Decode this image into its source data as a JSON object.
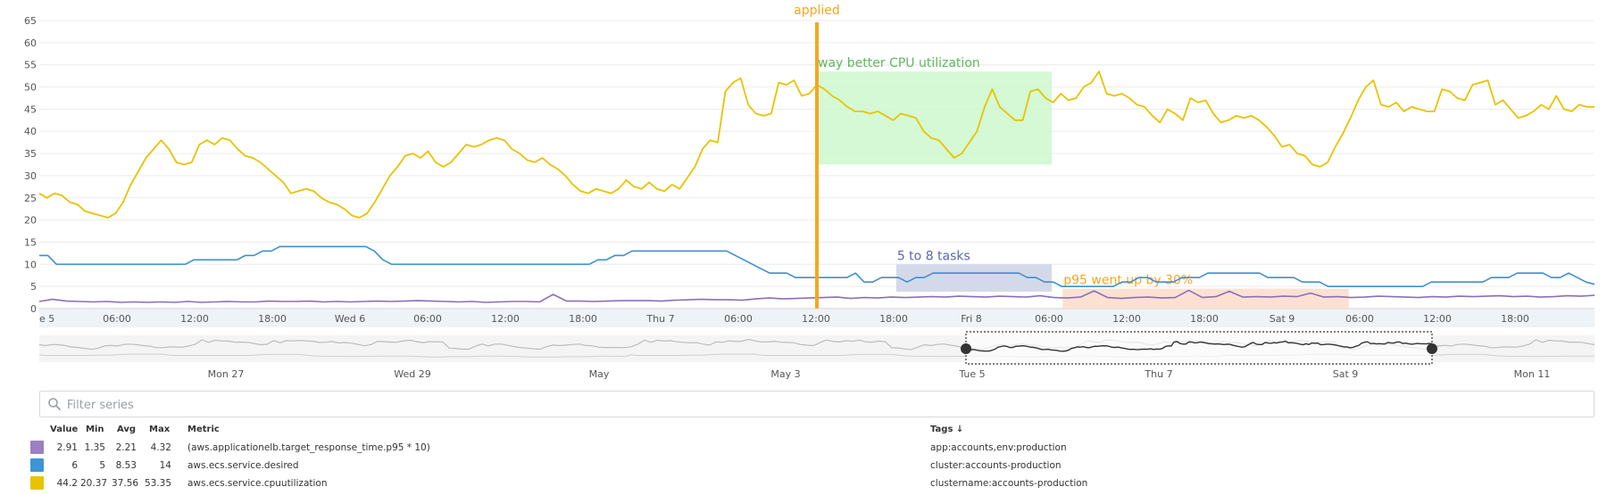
{
  "chart_data": [
    {
      "type": "line",
      "title": "",
      "ylim": [
        0,
        65
      ],
      "yticks": [
        0,
        5,
        10,
        15,
        20,
        25,
        30,
        35,
        40,
        45,
        50,
        55,
        60,
        65
      ],
      "grid": true,
      "legend": "none",
      "xlabels": [
        "e 5",
        "06:00",
        "12:00",
        "18:00",
        "Wed 6",
        "06:00",
        "12:00",
        "18:00",
        "Thu 7",
        "06:00",
        "12:00",
        "18:00",
        "Fri 8",
        "06:00",
        "12:00",
        "18:00",
        "Sat 9",
        "06:00",
        "12:00",
        "18:00"
      ],
      "series": [
        {
          "id": "cpu",
          "color": "#e8c300",
          "values": [
            26,
            25,
            26,
            25.5,
            24,
            23.5,
            22,
            21.5,
            21,
            20.5,
            21.5,
            24,
            28,
            31,
            34,
            36,
            38,
            36,
            33,
            32.5,
            33,
            37,
            38,
            37,
            38.5,
            38,
            36,
            34.5,
            34,
            33,
            31.5,
            30,
            28.5,
            26,
            26.5,
            27,
            26.5,
            25,
            24,
            23.5,
            22.5,
            21,
            20.5,
            21.5,
            24,
            27,
            30,
            32,
            34.5,
            35,
            34,
            35.5,
            33,
            32,
            33,
            35,
            37,
            36.5,
            37,
            38,
            38.5,
            38,
            36,
            35,
            33.5,
            33,
            34,
            32.5,
            31.5,
            30,
            28,
            26.5,
            26,
            27,
            26.5,
            26,
            27,
            29,
            27.5,
            27,
            28.5,
            27,
            26.5,
            28,
            27,
            29.5,
            32,
            36,
            38,
            37.5,
            49,
            51,
            52,
            46,
            44,
            43.5,
            44,
            51,
            50.5,
            51.5,
            48,
            48.5,
            50.5,
            49.5,
            48,
            47,
            45.5,
            44.5,
            44.5,
            44,
            44.5,
            43.5,
            42.5,
            44,
            43.5,
            43,
            40,
            38.5,
            38,
            36,
            34,
            35,
            37.5,
            40,
            45.5,
            49.5,
            45.5,
            44,
            42.5,
            42.5,
            49,
            49.5,
            47.5,
            46.5,
            48.5,
            47,
            47.5,
            50,
            51,
            53.5,
            48.5,
            48,
            48.5,
            47.5,
            46,
            45.5,
            43.5,
            42,
            45,
            44,
            42.5,
            47.5,
            46.5,
            47,
            44,
            42,
            42.5,
            43.5,
            43,
            43.5,
            42.5,
            41,
            39,
            36.5,
            37,
            35,
            34.5,
            32.5,
            32,
            33,
            36.5,
            39.5,
            43,
            47,
            50,
            51.5,
            46,
            45.5,
            46.5,
            44.5,
            45.5,
            45,
            44.5,
            44.5,
            49.5,
            49,
            47.5,
            47,
            50.5,
            51,
            51.5,
            46,
            47,
            45,
            43,
            43.5,
            44.5,
            46,
            45,
            48,
            45,
            44.5,
            46,
            45.5,
            45.5
          ]
        },
        {
          "id": "desired",
          "color": "#3d8fd1",
          "values": [
            12,
            12,
            10,
            10,
            10,
            10,
            10,
            10,
            10,
            10,
            10,
            10,
            10,
            10,
            10,
            10,
            10,
            10,
            11,
            11,
            11,
            11,
            11,
            11,
            12,
            12,
            13,
            13,
            14,
            14,
            14,
            14,
            14,
            14,
            14,
            14,
            14,
            14,
            14,
            13,
            11,
            10,
            10,
            10,
            10,
            10,
            10,
            10,
            10,
            10,
            10,
            10,
            10,
            10,
            10,
            10,
            10,
            10,
            10,
            10,
            10,
            10,
            10,
            10,
            10,
            11,
            11,
            12,
            12,
            13,
            13,
            13,
            13,
            13,
            13,
            13,
            13,
            13,
            13,
            13,
            13,
            12,
            11,
            10,
            9,
            8,
            8,
            8,
            7,
            7,
            7,
            7,
            7,
            7,
            7,
            8,
            6,
            6,
            7,
            7,
            7,
            6,
            7,
            7,
            8,
            8,
            8,
            8,
            8,
            8,
            8,
            8,
            8,
            8,
            8,
            7,
            7,
            6,
            6,
            5,
            5,
            5,
            5,
            5,
            5,
            5,
            6,
            6,
            7,
            7,
            6,
            6,
            6,
            7,
            7,
            7,
            8,
            8,
            8,
            8,
            8,
            8,
            8,
            7,
            7,
            7,
            7,
            6,
            6,
            6,
            5,
            5,
            5,
            5,
            5,
            5,
            5,
            5,
            5,
            5,
            5,
            5,
            6,
            6,
            6,
            6,
            6,
            6,
            6,
            7,
            7,
            7,
            8,
            8,
            8,
            8,
            7,
            7,
            8,
            7,
            6,
            5.5
          ]
        },
        {
          "id": "p95",
          "color": "#8b6fba",
          "values": [
            1.6,
            2.1,
            1.7,
            1.6,
            1.5,
            1.6,
            1.4,
            1.5,
            1.4,
            1.5,
            1.4,
            1.6,
            1.4,
            1.5,
            1.6,
            1.5,
            1.5,
            1.7,
            1.6,
            1.6,
            1.7,
            1.5,
            1.6,
            1.5,
            1.6,
            1.7,
            1.6,
            1.7,
            1.8,
            1.7,
            1.6,
            1.5,
            1.6,
            1.4,
            1.5,
            1.6,
            1.6,
            1.5,
            3.2,
            1.7,
            1.7,
            1.6,
            1.7,
            1.8,
            1.8,
            1.8,
            1.7,
            1.9,
            2.0,
            2.1,
            2.0,
            2.0,
            1.9,
            2.2,
            2.4,
            2.2,
            2.3,
            2.4,
            2.5,
            2.6,
            2.3,
            2.5,
            2.4,
            2.6,
            2.5,
            2.6,
            2.7,
            2.6,
            2.8,
            2.7,
            2.6,
            2.8,
            2.7,
            2.6,
            2.9,
            2.5,
            2.4,
            2.6,
            4.0,
            2.5,
            2.3,
            2.5,
            2.6,
            2.4,
            2.5,
            4.1,
            2.5,
            2.7,
            3.9,
            2.6,
            2.7,
            2.6,
            2.8,
            2.7,
            3.5,
            2.6,
            2.7,
            2.5,
            2.6,
            2.8,
            2.7,
            2.6,
            2.5,
            2.7,
            2.6,
            2.8,
            2.7,
            2.8,
            2.9,
            2.7,
            2.8,
            2.6,
            2.7,
            2.9,
            2.8,
            3.0
          ]
        }
      ],
      "annotations": {
        "event": {
          "text": "applied",
          "color": "#f5a623",
          "frac": 0.5
        }
      },
      "regions": [
        {
          "label": "way better CPU utilization",
          "text_color": "#5cb85c",
          "fill": "#ccf8cc",
          "x0": 0.5,
          "x1": 0.651,
          "y0": 32.5,
          "y1": 53.5
        },
        {
          "label": "5 to 8 tasks",
          "text_color": "#5a67a8",
          "fill": "#cdd2e6",
          "x0": 0.551,
          "x1": 0.651,
          "y0": 3.8,
          "y1": 10
        },
        {
          "label": "p95 went up by 30%",
          "text_color": "#f5a623",
          "fill": "#fbdccb",
          "x0": 0.658,
          "x1": 0.842,
          "y0": 0,
          "y1": 4.5
        }
      ]
    }
  ],
  "navigator": {
    "labels": [
      "Mon 27",
      "Wed 29",
      "May",
      "May 3",
      "Tue 5",
      "Thu 7",
      "Sat 9",
      "Mon 11"
    ]
  },
  "filter": {
    "placeholder": "Filter series"
  },
  "legend": {
    "headers": {
      "value": "Value",
      "min": "Min",
      "avg": "Avg",
      "max": "Max",
      "metric": "Metric",
      "tags": "Tags ↓"
    },
    "rows": [
      {
        "color": "#9b7fc4",
        "value": "2.91",
        "min": "1.35",
        "avg": "2.21",
        "max": "4.32",
        "metric": "(aws.applicationelb.target_response_time.p95 * 10)",
        "tags": "app:accounts,env:production"
      },
      {
        "color": "#3d95d5",
        "value": "6",
        "min": "5",
        "avg": "8.53",
        "max": "14",
        "metric": "aws.ecs.service.desired",
        "tags": "cluster:accounts-production"
      },
      {
        "color": "#e8c300",
        "value": "44.2",
        "min": "20.37",
        "avg": "37.56",
        "max": "53.35",
        "metric": "aws.ecs.service.cpuutilization",
        "tags": "clustername:accounts-production"
      }
    ]
  }
}
